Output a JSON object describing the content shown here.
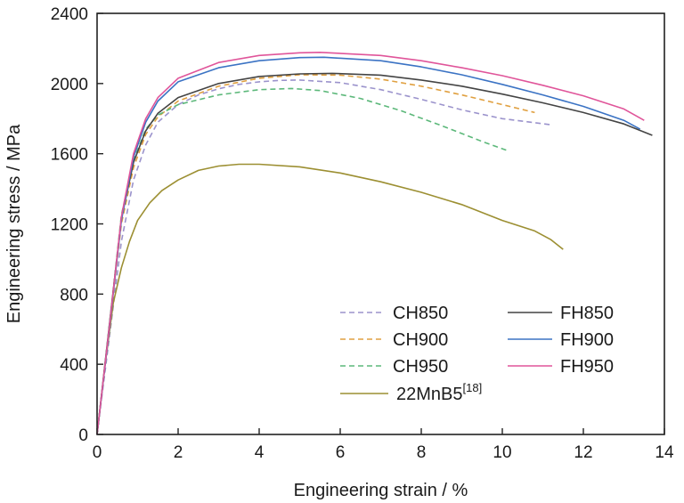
{
  "chart_data": {
    "type": "line",
    "xlabel": "Engineering strain / %",
    "ylabel": "Engineering stress / MPa",
    "xlim": [
      0,
      14
    ],
    "ylim": [
      0,
      2400
    ],
    "xticks": [
      0,
      2,
      4,
      6,
      8,
      10,
      12,
      14
    ],
    "yticks": [
      0,
      400,
      800,
      1200,
      1600,
      2000,
      2400
    ],
    "grid": false,
    "legend_position": "bottom-right",
    "series": [
      {
        "name": "CH850",
        "color": "#9b93cc",
        "dashed": true,
        "x": [
          0,
          0.3,
          0.6,
          0.9,
          1.2,
          1.5,
          2,
          2.5,
          3,
          3.5,
          4,
          4.5,
          5,
          6,
          7,
          8,
          9,
          10,
          11.2
        ],
        "y": [
          0,
          550,
          1100,
          1450,
          1650,
          1780,
          1880,
          1935,
          1970,
          1995,
          2010,
          2018,
          2020,
          2005,
          1965,
          1910,
          1850,
          1800,
          1765
        ]
      },
      {
        "name": "CH900",
        "color": "#e0a040",
        "dashed": true,
        "x": [
          0,
          0.3,
          0.6,
          0.9,
          1.2,
          1.5,
          2,
          3,
          4,
          5,
          6,
          7,
          8,
          9,
          10,
          10.8
        ],
        "y": [
          0,
          600,
          1200,
          1520,
          1710,
          1810,
          1900,
          1985,
          2030,
          2050,
          2048,
          2025,
          1985,
          1935,
          1880,
          1835
        ]
      },
      {
        "name": "CH950",
        "color": "#5cb87a",
        "dashed": true,
        "x": [
          0,
          0.3,
          0.6,
          0.9,
          1.2,
          1.5,
          2,
          3,
          4,
          4.8,
          5.5,
          6.5,
          7.5,
          8.5,
          9.5,
          10.1
        ],
        "y": [
          0,
          620,
          1250,
          1560,
          1740,
          1820,
          1880,
          1935,
          1965,
          1972,
          1960,
          1915,
          1845,
          1760,
          1670,
          1620
        ]
      },
      {
        "name": "22MnB5",
        "sup": "[18]",
        "color": "#9c8f32",
        "dashed": false,
        "x": [
          0,
          0.2,
          0.4,
          0.6,
          0.8,
          1.0,
          1.3,
          1.6,
          2.0,
          2.5,
          3.0,
          3.5,
          4.0,
          5.0,
          6.0,
          7.0,
          8.0,
          9.0,
          10.0,
          10.8,
          11.2,
          11.5
        ],
        "y": [
          0,
          400,
          750,
          950,
          1100,
          1220,
          1320,
          1390,
          1450,
          1505,
          1530,
          1540,
          1540,
          1525,
          1490,
          1440,
          1380,
          1310,
          1220,
          1160,
          1110,
          1055
        ]
      },
      {
        "name": "FH850",
        "color": "#444444",
        "dashed": false,
        "x": [
          0,
          0.3,
          0.6,
          0.9,
          1.2,
          1.5,
          2,
          3,
          4,
          5,
          5.8,
          7,
          8,
          9,
          10,
          11,
          12,
          13,
          13.7
        ],
        "y": [
          0,
          620,
          1230,
          1550,
          1730,
          1830,
          1920,
          2000,
          2040,
          2055,
          2058,
          2048,
          2020,
          1985,
          1940,
          1890,
          1835,
          1770,
          1705
        ]
      },
      {
        "name": "FH900",
        "color": "#3b73c4",
        "dashed": false,
        "x": [
          0,
          0.3,
          0.6,
          0.9,
          1.2,
          1.5,
          2,
          3,
          4,
          5,
          5.6,
          7,
          8,
          9,
          10,
          11,
          12,
          13,
          13.4
        ],
        "y": [
          0,
          600,
          1220,
          1580,
          1780,
          1900,
          2010,
          2090,
          2130,
          2148,
          2150,
          2130,
          2095,
          2050,
          1995,
          1935,
          1870,
          1790,
          1740
        ]
      },
      {
        "name": "FH950",
        "color": "#e0559a",
        "dashed": false,
        "x": [
          0,
          0.3,
          0.6,
          0.9,
          1.2,
          1.5,
          2,
          3,
          4,
          5,
          5.5,
          7,
          8,
          9,
          10,
          11,
          12,
          13,
          13.5
        ],
        "y": [
          0,
          610,
          1240,
          1600,
          1800,
          1920,
          2030,
          2120,
          2160,
          2175,
          2178,
          2160,
          2130,
          2090,
          2045,
          1990,
          1930,
          1855,
          1790
        ]
      }
    ]
  }
}
